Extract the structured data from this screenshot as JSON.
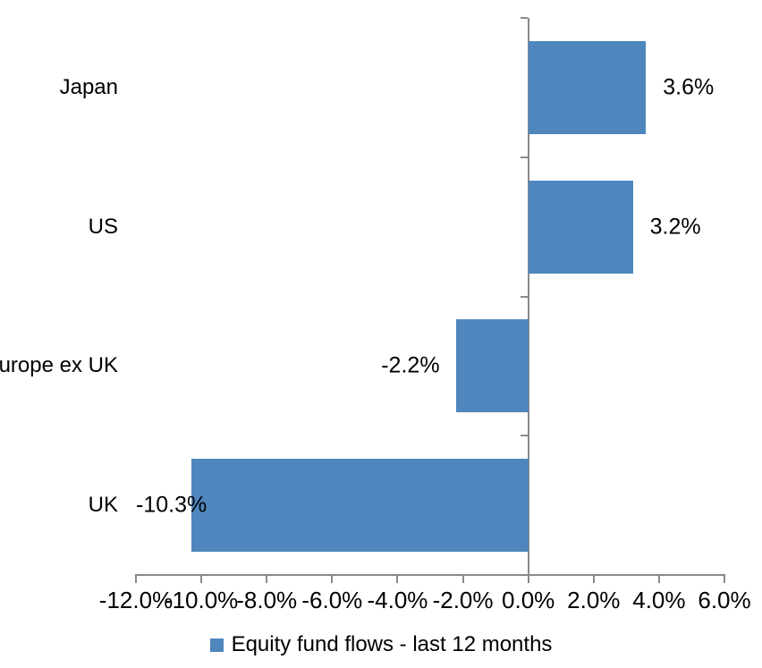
{
  "chart_data": {
    "type": "bar",
    "orientation": "horizontal",
    "categories": [
      "Japan",
      "US",
      "Europe ex UK",
      "UK"
    ],
    "values": [
      3.6,
      3.2,
      -2.2,
      -10.3
    ],
    "data_labels": [
      "3.6%",
      "3.2%",
      "-2.2%",
      "-10.3%"
    ],
    "x_ticks": [
      -12,
      -10,
      -8,
      -6,
      -4,
      -2,
      0,
      2,
      4,
      6
    ],
    "x_tick_labels": [
      "-12.0%",
      "-10.0%",
      "-8.0%",
      "-6.0%",
      "-4.0%",
      "-2.0%",
      "0.0%",
      "2.0%",
      "4.0%",
      "6.0%"
    ],
    "xlim": [
      -12,
      6
    ],
    "grid": false,
    "legend_position": "bottom-center",
    "legend": [
      {
        "label": "Equity fund flows - last 12 months",
        "color": "#4e86bd"
      }
    ],
    "colors": {
      "bar": "#4e86bd",
      "axis": "#8a8a8a",
      "text": "#000000",
      "background": "#ffffff"
    }
  }
}
